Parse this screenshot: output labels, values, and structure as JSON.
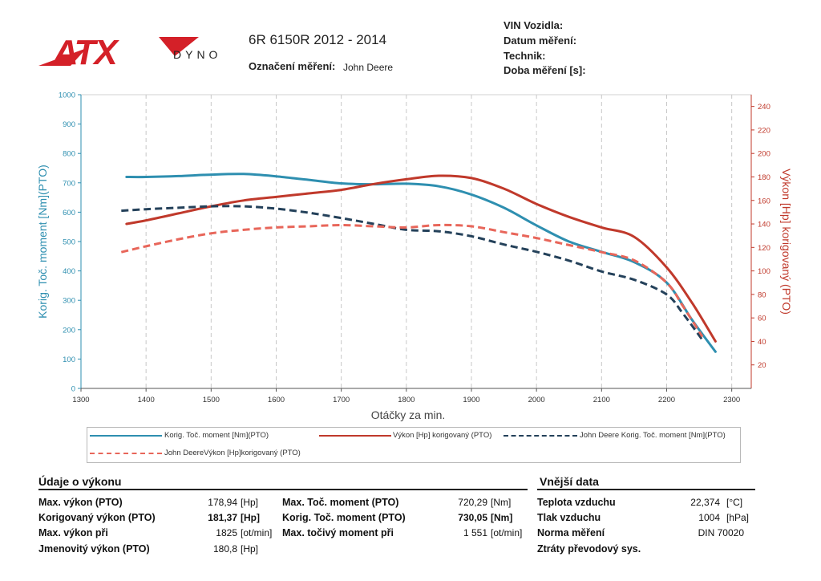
{
  "header": {
    "logo_text": "ATX",
    "logo_sub": "DYNO",
    "model": "6R 6150R 2012 - 2014",
    "measurement_label": "Označení měření:",
    "measurement_value": "John Deere",
    "info_labels": [
      "VIN Vozidla:",
      "Datum měření:",
      "Technik:",
      "Doba měření [s]:"
    ]
  },
  "colors": {
    "blue": "#2e8fb0",
    "red": "#c0392b",
    "dark_dash": "#24415a",
    "light_red_dash": "#e8665a",
    "logo_red": "#d42028"
  },
  "chart_data": {
    "type": "line",
    "xlabel": "Otáčky za min.",
    "ylabel_left": "Korig. Toč. moment [Nm](PTO)",
    "ylabel_right": "Výkon [Hp] korigovaný (PTO)",
    "xlim": [
      1300,
      2330
    ],
    "ylim_left": [
      0,
      1000
    ],
    "ylim_right": [
      0,
      250
    ],
    "x_ticks": [
      1300,
      1400,
      1500,
      1600,
      1700,
      1800,
      1900,
      2000,
      2100,
      2200,
      2300
    ],
    "y_left_ticks": [
      0,
      100,
      200,
      300,
      400,
      500,
      600,
      700,
      800,
      900,
      1000
    ],
    "y_right_ticks": [
      20,
      40,
      60,
      80,
      100,
      120,
      140,
      160,
      180,
      200,
      220,
      240
    ],
    "grid": true,
    "series": [
      {
        "name": "Korig. Toč. moment [Nm](PTO)",
        "axis": "left",
        "style": "solid",
        "color": "#2e8fb0",
        "points": [
          [
            1370,
            720
          ],
          [
            1400,
            720
          ],
          [
            1450,
            723
          ],
          [
            1500,
            728
          ],
          [
            1550,
            730
          ],
          [
            1600,
            722
          ],
          [
            1650,
            710
          ],
          [
            1700,
            698
          ],
          [
            1750,
            695
          ],
          [
            1800,
            697
          ],
          [
            1850,
            688
          ],
          [
            1900,
            660
          ],
          [
            1950,
            615
          ],
          [
            2000,
            555
          ],
          [
            2050,
            500
          ],
          [
            2100,
            465
          ],
          [
            2150,
            430
          ],
          [
            2200,
            360
          ],
          [
            2240,
            230
          ],
          [
            2275,
            125
          ]
        ]
      },
      {
        "name": "Výkon [Hp] korigovaný (PTO)",
        "axis": "right",
        "style": "solid",
        "color": "#c0392b",
        "points": [
          [
            1370,
            140
          ],
          [
            1400,
            143
          ],
          [
            1450,
            149
          ],
          [
            1500,
            155
          ],
          [
            1550,
            160
          ],
          [
            1600,
            163
          ],
          [
            1650,
            166
          ],
          [
            1700,
            169
          ],
          [
            1750,
            174
          ],
          [
            1800,
            178
          ],
          [
            1850,
            181
          ],
          [
            1900,
            179
          ],
          [
            1950,
            170
          ],
          [
            2000,
            157
          ],
          [
            2050,
            146
          ],
          [
            2100,
            137
          ],
          [
            2150,
            129
          ],
          [
            2200,
            103
          ],
          [
            2240,
            72
          ],
          [
            2275,
            40
          ]
        ]
      },
      {
        "name": "John Deere Korig. Toč. moment [Nm](PTO)",
        "axis": "left",
        "style": "dashed",
        "color": "#24415a",
        "points": [
          [
            1362,
            605
          ],
          [
            1400,
            610
          ],
          [
            1450,
            615
          ],
          [
            1500,
            620
          ],
          [
            1550,
            620
          ],
          [
            1600,
            612
          ],
          [
            1650,
            598
          ],
          [
            1700,
            580
          ],
          [
            1750,
            560
          ],
          [
            1800,
            540
          ],
          [
            1850,
            535
          ],
          [
            1900,
            518
          ],
          [
            1950,
            490
          ],
          [
            2000,
            465
          ],
          [
            2050,
            435
          ],
          [
            2100,
            398
          ],
          [
            2150,
            370
          ],
          [
            2200,
            320
          ],
          [
            2225,
            255
          ],
          [
            2255,
            165
          ]
        ]
      },
      {
        "name": "John DeereVýkon [Hp]korigovaný (PTO)",
        "axis": "right",
        "style": "dashed",
        "color": "#e8665a",
        "points": [
          [
            1362,
            116
          ],
          [
            1400,
            121
          ],
          [
            1450,
            127
          ],
          [
            1500,
            132
          ],
          [
            1550,
            135
          ],
          [
            1600,
            137
          ],
          [
            1650,
            138
          ],
          [
            1700,
            139
          ],
          [
            1750,
            138
          ],
          [
            1800,
            137
          ],
          [
            1850,
            139
          ],
          [
            1900,
            138
          ],
          [
            1950,
            133
          ],
          [
            2000,
            128
          ],
          [
            2050,
            122
          ],
          [
            2100,
            116
          ],
          [
            2150,
            109
          ],
          [
            2200,
            90
          ],
          [
            2225,
            70
          ],
          [
            2255,
            44
          ]
        ]
      }
    ]
  },
  "legend": [
    "Korig. Toč. moment [Nm](PTO)",
    "Výkon [Hp] korigovaný (PTO)",
    "John Deere Korig. Toč. moment [Nm](PTO)",
    "John DeereVýkon [Hp]korigovaný (PTO)"
  ],
  "performance": {
    "title": "Údaje o výkonu",
    "rows": [
      {
        "label": "Max. výkon (PTO)",
        "value": "178,94",
        "unit": "[Hp]"
      },
      {
        "label": "Korigovaný výkon (PTO)",
        "value": "181,37",
        "unit": "[Hp]"
      },
      {
        "label": "Max. výkon při",
        "value": "1825",
        "unit": "[ot/min]"
      },
      {
        "label": "Jmenovitý výkon (PTO)",
        "value": "180,8",
        "unit": "[Hp]"
      }
    ],
    "rows2": [
      {
        "label": "Max. Toč. moment (PTO)",
        "value": "720,29",
        "unit": "[Nm]"
      },
      {
        "label": "Korig. Toč. moment (PTO)",
        "value": "730,05",
        "unit": "[Nm]"
      },
      {
        "label": "Max. točivý moment při",
        "value": "1 551",
        "unit": "[ot/min]"
      }
    ]
  },
  "external": {
    "title": "Vnější data",
    "rows": [
      {
        "label": "Teplota vzduchu",
        "value": "22,374",
        "unit": "[°C]"
      },
      {
        "label": "Tlak vzduchu",
        "value": "1004",
        "unit": "[hPa]"
      },
      {
        "label": "Norma měření",
        "value": "DIN 70020",
        "unit": ""
      },
      {
        "label": "Ztráty převodový sys.",
        "value": "",
        "unit": ""
      }
    ]
  }
}
